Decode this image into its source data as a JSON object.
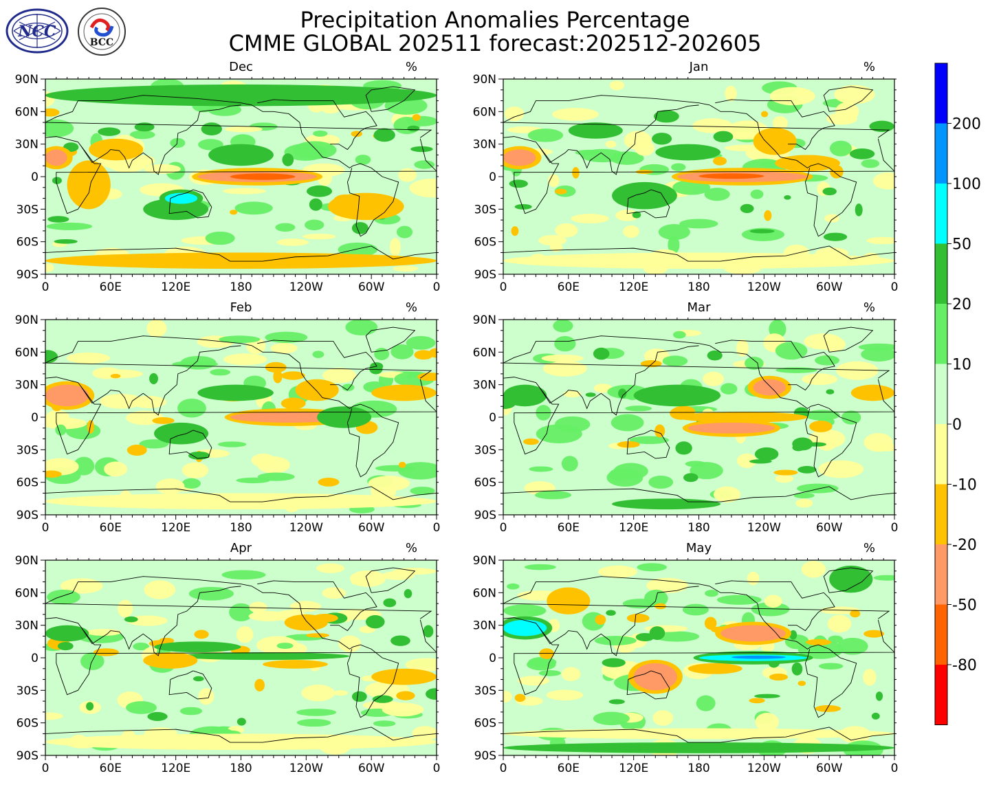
{
  "figure": {
    "title_line1": "Precipitation Anomalies Percentage",
    "title_line2": "CMME GLOBAL 202511 forecast:202512-202605"
  },
  "logos": [
    {
      "name": "NCC",
      "text": "NCC"
    },
    {
      "name": "BCC",
      "text": "BCC"
    }
  ],
  "chart_data": [
    {
      "type": "heatmap",
      "title": "Dec",
      "unit": "%",
      "x_ticks": [
        "0",
        "60E",
        "120E",
        "180",
        "120W",
        "60W",
        "0"
      ],
      "y_ticks": [
        "90N",
        "60N",
        "30N",
        "0",
        "30S",
        "60S",
        "90S"
      ],
      "xlim": [
        0,
        360
      ],
      "ylim": [
        -90,
        90
      ],
      "features": [
        {
          "lon": [
            140,
            250
          ],
          "lat": [
            -5,
            5
          ],
          "level": -50
        },
        {
          "lon": [
            170,
            230
          ],
          "lat": [
            -3,
            3
          ],
          "level": -80
        },
        {
          "lon": [
            20,
            60
          ],
          "lat": [
            -30,
            15
          ],
          "level": -20
        },
        {
          "lon": [
            90,
            150
          ],
          "lat": [
            -40,
            -20
          ],
          "level": 20
        },
        {
          "lon": [
            110,
            140
          ],
          "lat": [
            -25,
            -15
          ],
          "level": 50
        },
        {
          "lon": [
            150,
            210
          ],
          "lat": [
            10,
            30
          ],
          "level": 20
        },
        {
          "lon": [
            260,
            330
          ],
          "lat": [
            -40,
            -15
          ],
          "level": -20
        },
        {
          "lon": [
            0,
            20
          ],
          "lat": [
            10,
            25
          ],
          "level": -50
        },
        {
          "lon": [
            40,
            90
          ],
          "lat": [
            15,
            35
          ],
          "level": -20
        },
        {
          "lon": [
            0,
            360
          ],
          "lat": [
            -85,
            -70
          ],
          "level": -20
        },
        {
          "lon": [
            0,
            360
          ],
          "lat": [
            65,
            85
          ],
          "level": 20
        }
      ]
    },
    {
      "type": "heatmap",
      "title": "Jan",
      "unit": "%",
      "x_ticks": [
        "0",
        "60E",
        "120E",
        "180",
        "120W",
        "60W",
        "0"
      ],
      "y_ticks": [
        "90N",
        "60N",
        "30N",
        "0",
        "30S",
        "60S",
        "90S"
      ],
      "xlim": [
        0,
        360
      ],
      "ylim": [
        -90,
        90
      ],
      "features": [
        {
          "lon": [
            160,
            280
          ],
          "lat": [
            -5,
            5
          ],
          "level": -50
        },
        {
          "lon": [
            180,
            240
          ],
          "lat": [
            -2,
            3
          ],
          "level": -80
        },
        {
          "lon": [
            0,
            30
          ],
          "lat": [
            10,
            25
          ],
          "level": -50
        },
        {
          "lon": [
            100,
            160
          ],
          "lat": [
            -30,
            -5
          ],
          "level": 20
        },
        {
          "lon": [
            140,
            200
          ],
          "lat": [
            15,
            30
          ],
          "level": 20
        },
        {
          "lon": [
            230,
            270
          ],
          "lat": [
            20,
            45
          ],
          "level": -20
        },
        {
          "lon": [
            250,
            310
          ],
          "lat": [
            5,
            20
          ],
          "level": -20
        },
        {
          "lon": [
            0,
            360
          ],
          "lat": [
            -85,
            -70
          ],
          "level": -10
        },
        {
          "lon": [
            60,
            110
          ],
          "lat": [
            35,
            50
          ],
          "level": 20
        }
      ]
    },
    {
      "type": "heatmap",
      "title": "Feb",
      "unit": "%",
      "x_ticks": [
        "0",
        "60E",
        "120E",
        "180",
        "120W",
        "60W",
        "0"
      ],
      "y_ticks": [
        "90N",
        "60N",
        "30N",
        "0",
        "30S",
        "60S",
        "90S"
      ],
      "xlim": [
        0,
        360
      ],
      "ylim": [
        -90,
        90
      ],
      "features": [
        {
          "lon": [
            170,
            280
          ],
          "lat": [
            -5,
            5
          ],
          "level": -50
        },
        {
          "lon": [
            0,
            40
          ],
          "lat": [
            10,
            30
          ],
          "level": -50
        },
        {
          "lon": [
            140,
            210
          ],
          "lat": [
            15,
            30
          ],
          "level": 20
        },
        {
          "lon": [
            100,
            150
          ],
          "lat": [
            -25,
            -5
          ],
          "level": 20
        },
        {
          "lon": [
            230,
            270
          ],
          "lat": [
            15,
            35
          ],
          "level": -20
        },
        {
          "lon": [
            300,
            360
          ],
          "lat": [
            15,
            30
          ],
          "level": -20
        },
        {
          "lon": [
            250,
            300
          ],
          "lat": [
            -10,
            10
          ],
          "level": 20
        },
        {
          "lon": [
            0,
            360
          ],
          "lat": [
            -85,
            -70
          ],
          "level": -10
        }
      ]
    },
    {
      "type": "heatmap",
      "title": "Mar",
      "unit": "%",
      "x_ticks": [
        "0",
        "60E",
        "120E",
        "180",
        "120W",
        "60W",
        "0"
      ],
      "y_ticks": [
        "90N",
        "60N",
        "30N",
        "0",
        "30S",
        "60S",
        "90S"
      ],
      "xlim": [
        0,
        360
      ],
      "ylim": [
        -90,
        90
      ],
      "features": [
        {
          "lon": [
            160,
            280
          ],
          "lat": [
            -5,
            5
          ],
          "level": -20
        },
        {
          "lon": [
            170,
            250
          ],
          "lat": [
            -15,
            -5
          ],
          "level": -50
        },
        {
          "lon": [
            120,
            200
          ],
          "lat": [
            10,
            30
          ],
          "level": 20
        },
        {
          "lon": [
            0,
            40
          ],
          "lat": [
            10,
            30
          ],
          "level": 20
        },
        {
          "lon": [
            230,
            260
          ],
          "lat": [
            20,
            35
          ],
          "level": -50
        },
        {
          "lon": [
            320,
            360
          ],
          "lat": [
            15,
            30
          ],
          "level": -20
        },
        {
          "lon": [
            100,
            200
          ],
          "lat": [
            -85,
            -75
          ],
          "level": 20
        }
      ]
    },
    {
      "type": "heatmap",
      "title": "Apr",
      "unit": "%",
      "x_ticks": [
        "0",
        "60E",
        "120E",
        "180",
        "120W",
        "60W",
        "0"
      ],
      "y_ticks": [
        "90N",
        "60N",
        "30N",
        "0",
        "30S",
        "60S",
        "90S"
      ],
      "xlim": [
        0,
        360
      ],
      "ylim": [
        -90,
        90
      ],
      "features": [
        {
          "lon": [
            120,
            280
          ],
          "lat": [
            -2,
            5
          ],
          "level": 20
        },
        {
          "lon": [
            100,
            180
          ],
          "lat": [
            5,
            15
          ],
          "level": 20
        },
        {
          "lon": [
            200,
            260
          ],
          "lat": [
            -10,
            -2
          ],
          "level": -20
        },
        {
          "lon": [
            90,
            140
          ],
          "lat": [
            -10,
            5
          ],
          "level": -20
        },
        {
          "lon": [
            0,
            40
          ],
          "lat": [
            15,
            30
          ],
          "level": 20
        },
        {
          "lon": [
            220,
            260
          ],
          "lat": [
            25,
            40
          ],
          "level": -20
        },
        {
          "lon": [
            300,
            360
          ],
          "lat": [
            -25,
            -10
          ],
          "level": -20
        },
        {
          "lon": [
            0,
            360
          ],
          "lat": [
            -85,
            -70
          ],
          "level": -10
        }
      ]
    },
    {
      "type": "heatmap",
      "title": "May",
      "unit": "%",
      "x_ticks": [
        "0",
        "60E",
        "120E",
        "180",
        "120W",
        "60W",
        "0"
      ],
      "y_ticks": [
        "90N",
        "60N",
        "30N",
        "0",
        "30S",
        "60S",
        "90S"
      ],
      "xlim": [
        0,
        360
      ],
      "ylim": [
        -90,
        90
      ],
      "features": [
        {
          "lon": [
            180,
            280
          ],
          "lat": [
            -3,
            3
          ],
          "level": 50
        },
        {
          "lon": [
            210,
            260
          ],
          "lat": [
            -1,
            2
          ],
          "level": 100
        },
        {
          "lon": [
            120,
            160
          ],
          "lat": [
            -30,
            -5
          ],
          "level": -50
        },
        {
          "lon": [
            40,
            80
          ],
          "lat": [
            40,
            65
          ],
          "level": -20
        },
        {
          "lon": [
            0,
            40
          ],
          "lat": [
            20,
            35
          ],
          "level": 50
        },
        {
          "lon": [
            170,
            220
          ],
          "lat": [
            -15,
            -5
          ],
          "level": -20
        },
        {
          "lon": [
            200,
            260
          ],
          "lat": [
            15,
            30
          ],
          "level": -50
        },
        {
          "lon": [
            300,
            340
          ],
          "lat": [
            60,
            85
          ],
          "level": 20
        },
        {
          "lon": [
            0,
            360
          ],
          "lat": [
            -88,
            -78
          ],
          "level": 20
        },
        {
          "lon": [
            0,
            360
          ],
          "lat": [
            -75,
            -65
          ],
          "level": -10
        }
      ]
    }
  ],
  "colorbar": {
    "levels": [
      "200",
      "100",
      "50",
      "20",
      "10",
      "0",
      "-10",
      "-20",
      "-50",
      "-80"
    ],
    "colors": [
      "#0000ff",
      "#0095ff",
      "#00ffff",
      "#33bf33",
      "#66ef66",
      "#ccffcc",
      "#ffff99",
      "#ffc200",
      "#ff9966",
      "#ff6400",
      "#ff0000"
    ]
  },
  "legend_levels_meaning": "contour fill classes (%)"
}
